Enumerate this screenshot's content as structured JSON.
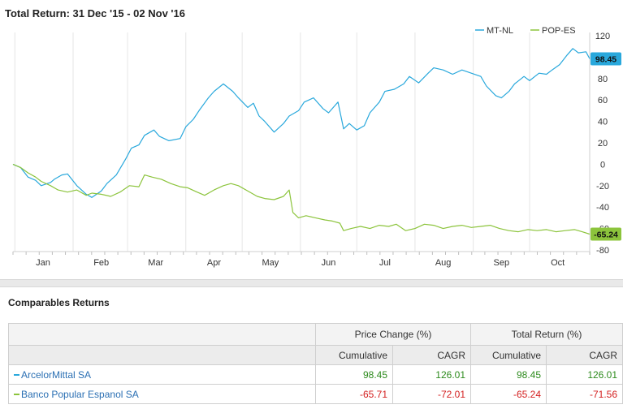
{
  "chart_data": {
    "type": "line",
    "title": "Total Return: 31 Dec '15 - 02 Nov '16",
    "x_tick_labels": [
      "Jan",
      "Feb",
      "Mar",
      "Apr",
      "May",
      "Jun",
      "Jul",
      "Aug",
      "Sep",
      "Oct"
    ],
    "y_ticks": [
      120,
      100,
      80,
      60,
      40,
      20,
      0,
      -20,
      -40,
      -60,
      -80
    ],
    "ylim": [
      -80,
      120
    ],
    "x_start": "2015-12-31",
    "x_end": "2016-11-02",
    "grid": {
      "vertical": true,
      "horizontal": false
    },
    "legend_position": "top-right",
    "series": [
      {
        "name": "MT-NL",
        "color": "#29a8dc",
        "end_label": "98.45",
        "points": [
          [
            "2015-12-31",
            0
          ],
          [
            "2016-01-04",
            -3
          ],
          [
            "2016-01-08",
            -12
          ],
          [
            "2016-01-12",
            -15
          ],
          [
            "2016-01-15",
            -20
          ],
          [
            "2016-01-20",
            -17
          ],
          [
            "2016-01-22",
            -14
          ],
          [
            "2016-01-26",
            -10
          ],
          [
            "2016-01-29",
            -9
          ],
          [
            "2016-02-03",
            -20
          ],
          [
            "2016-02-08",
            -28
          ],
          [
            "2016-02-11",
            -31
          ],
          [
            "2016-02-16",
            -25
          ],
          [
            "2016-02-19",
            -18
          ],
          [
            "2016-02-24",
            -10
          ],
          [
            "2016-02-29",
            5
          ],
          [
            "2016-03-03",
            15
          ],
          [
            "2016-03-07",
            18
          ],
          [
            "2016-03-10",
            27
          ],
          [
            "2016-03-15",
            32
          ],
          [
            "2016-03-18",
            26
          ],
          [
            "2016-03-23",
            22
          ],
          [
            "2016-03-29",
            24
          ],
          [
            "2016-04-01",
            35
          ],
          [
            "2016-04-05",
            42
          ],
          [
            "2016-04-08",
            50
          ],
          [
            "2016-04-13",
            62
          ],
          [
            "2016-04-16",
            68
          ],
          [
            "2016-04-21",
            75
          ],
          [
            "2016-04-26",
            68
          ],
          [
            "2016-04-29",
            62
          ],
          [
            "2016-05-04",
            53
          ],
          [
            "2016-05-07",
            57
          ],
          [
            "2016-05-10",
            45
          ],
          [
            "2016-05-13",
            40
          ],
          [
            "2016-05-18",
            30
          ],
          [
            "2016-05-23",
            38
          ],
          [
            "2016-05-26",
            45
          ],
          [
            "2016-05-31",
            50
          ],
          [
            "2016-06-03",
            58
          ],
          [
            "2016-06-08",
            62
          ],
          [
            "2016-06-13",
            52
          ],
          [
            "2016-06-16",
            48
          ],
          [
            "2016-06-21",
            58
          ],
          [
            "2016-06-24",
            33
          ],
          [
            "2016-06-27",
            38
          ],
          [
            "2016-07-01",
            32
          ],
          [
            "2016-07-05",
            36
          ],
          [
            "2016-07-08",
            48
          ],
          [
            "2016-07-13",
            58
          ],
          [
            "2016-07-16",
            68
          ],
          [
            "2016-07-21",
            70
          ],
          [
            "2016-07-26",
            75
          ],
          [
            "2016-07-29",
            82
          ],
          [
            "2016-08-03",
            76
          ],
          [
            "2016-08-08",
            85
          ],
          [
            "2016-08-11",
            90
          ],
          [
            "2016-08-16",
            88
          ],
          [
            "2016-08-21",
            84
          ],
          [
            "2016-08-26",
            88
          ],
          [
            "2016-08-31",
            85
          ],
          [
            "2016-09-05",
            82
          ],
          [
            "2016-09-08",
            73
          ],
          [
            "2016-09-13",
            64
          ],
          [
            "2016-09-16",
            62
          ],
          [
            "2016-09-20",
            68
          ],
          [
            "2016-09-23",
            75
          ],
          [
            "2016-09-28",
            82
          ],
          [
            "2016-10-01",
            78
          ],
          [
            "2016-10-06",
            85
          ],
          [
            "2016-10-10",
            84
          ],
          [
            "2016-10-13",
            88
          ],
          [
            "2016-10-17",
            93
          ],
          [
            "2016-10-21",
            102
          ],
          [
            "2016-10-24",
            108
          ],
          [
            "2016-10-27",
            104
          ],
          [
            "2016-10-31",
            105
          ],
          [
            "2016-11-02",
            98.45
          ]
        ]
      },
      {
        "name": "POP-ES",
        "color": "#8cc43c",
        "end_label": "-65.24",
        "points": [
          [
            "2015-12-31",
            0
          ],
          [
            "2016-01-04",
            -3
          ],
          [
            "2016-01-08",
            -8
          ],
          [
            "2016-01-12",
            -12
          ],
          [
            "2016-01-15",
            -16
          ],
          [
            "2016-01-20",
            -20
          ],
          [
            "2016-01-24",
            -24
          ],
          [
            "2016-01-29",
            -26
          ],
          [
            "2016-02-03",
            -24
          ],
          [
            "2016-02-08",
            -29
          ],
          [
            "2016-02-11",
            -27
          ],
          [
            "2016-02-16",
            -28
          ],
          [
            "2016-02-21",
            -30
          ],
          [
            "2016-02-26",
            -26
          ],
          [
            "2016-03-02",
            -20
          ],
          [
            "2016-03-07",
            -21
          ],
          [
            "2016-03-10",
            -10
          ],
          [
            "2016-03-14",
            -12
          ],
          [
            "2016-03-19",
            -14
          ],
          [
            "2016-03-24",
            -18
          ],
          [
            "2016-03-29",
            -21
          ],
          [
            "2016-04-02",
            -22
          ],
          [
            "2016-04-07",
            -26
          ],
          [
            "2016-04-11",
            -29
          ],
          [
            "2016-04-16",
            -24
          ],
          [
            "2016-04-21",
            -20
          ],
          [
            "2016-04-25",
            -18
          ],
          [
            "2016-04-29",
            -20
          ],
          [
            "2016-05-04",
            -25
          ],
          [
            "2016-05-09",
            -30
          ],
          [
            "2016-05-13",
            -32
          ],
          [
            "2016-05-18",
            -33
          ],
          [
            "2016-05-23",
            -30
          ],
          [
            "2016-05-26",
            -24
          ],
          [
            "2016-05-28",
            -45
          ],
          [
            "2016-05-31",
            -50
          ],
          [
            "2016-06-04",
            -48
          ],
          [
            "2016-06-09",
            -50
          ],
          [
            "2016-06-14",
            -52
          ],
          [
            "2016-06-18",
            -53
          ],
          [
            "2016-06-22",
            -55
          ],
          [
            "2016-06-24",
            -62
          ],
          [
            "2016-06-28",
            -60
          ],
          [
            "2016-07-03",
            -58
          ],
          [
            "2016-07-08",
            -60
          ],
          [
            "2016-07-13",
            -57
          ],
          [
            "2016-07-18",
            -58
          ],
          [
            "2016-07-22",
            -56
          ],
          [
            "2016-07-27",
            -62
          ],
          [
            "2016-08-01",
            -60
          ],
          [
            "2016-08-06",
            -56
          ],
          [
            "2016-08-11",
            -57
          ],
          [
            "2016-08-16",
            -60
          ],
          [
            "2016-08-21",
            -58
          ],
          [
            "2016-08-26",
            -57
          ],
          [
            "2016-08-31",
            -59
          ],
          [
            "2016-09-05",
            -58
          ],
          [
            "2016-09-10",
            -57
          ],
          [
            "2016-09-15",
            -60
          ],
          [
            "2016-09-20",
            -62
          ],
          [
            "2016-09-25",
            -63
          ],
          [
            "2016-09-30",
            -61
          ],
          [
            "2016-10-05",
            -62
          ],
          [
            "2016-10-10",
            -61
          ],
          [
            "2016-10-15",
            -63
          ],
          [
            "2016-10-20",
            -62
          ],
          [
            "2016-10-25",
            -61
          ],
          [
            "2016-10-29",
            -63
          ],
          [
            "2016-11-02",
            -65.24
          ]
        ]
      }
    ]
  },
  "comparables": {
    "heading": "Comparables Returns",
    "group_headers": [
      "Price Change (%)",
      "Total Return (%)"
    ],
    "sub_headers": [
      "Cumulative",
      "CAGR",
      "Cumulative",
      "CAGR"
    ],
    "rows": [
      {
        "name": "ArcelorMittal SA",
        "color": "#29a8dc",
        "values": [
          "98.45",
          "126.01",
          "98.45",
          "126.01"
        ]
      },
      {
        "name": "Banco Popular Espanol SA",
        "color": "#8cc43c",
        "values": [
          "-65.71",
          "-72.01",
          "-65.24",
          "-71.56"
        ]
      }
    ]
  }
}
